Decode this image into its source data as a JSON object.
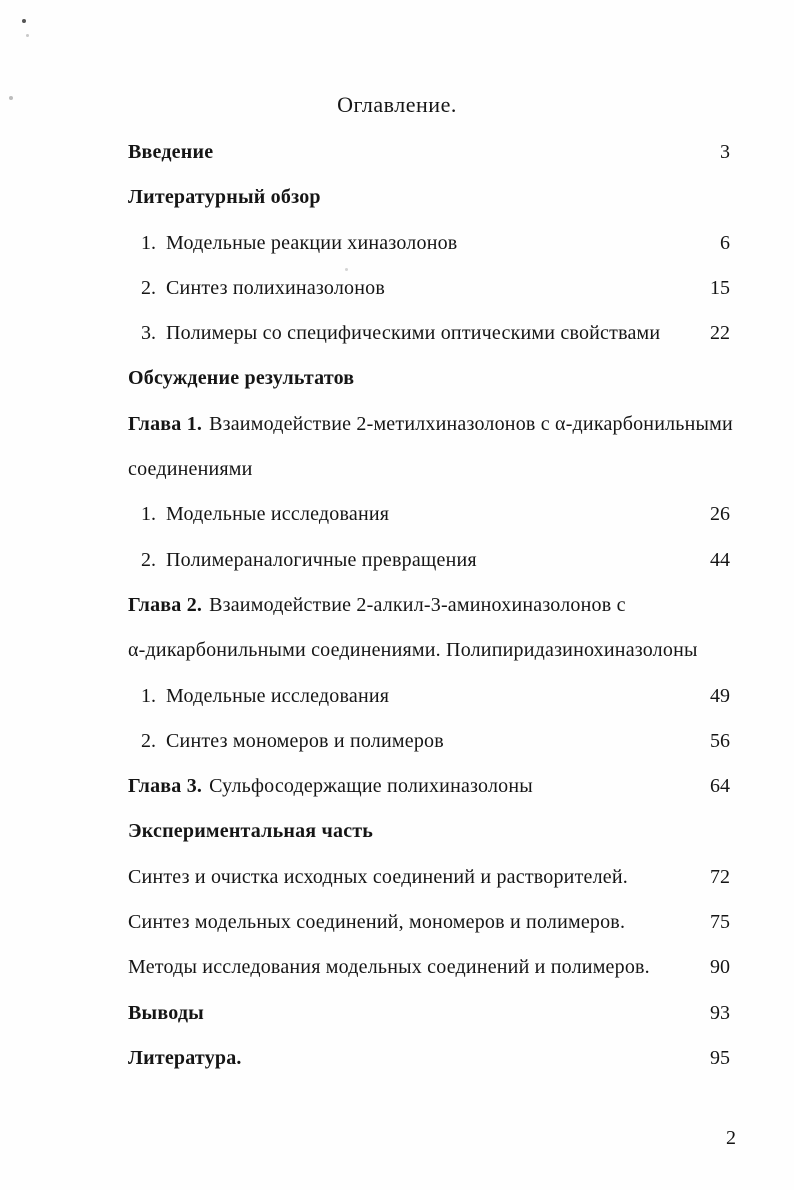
{
  "document": {
    "title": "Оглавление.",
    "footer_page_number": "2"
  },
  "toc": {
    "rows": [
      {
        "num": "",
        "bold": "Введение",
        "text": "",
        "page": "3"
      },
      {
        "num": "",
        "bold": "Литературный обзор",
        "text": "",
        "page": ""
      },
      {
        "num": "1.",
        "bold": "",
        "text": "Модельные реакции хиназолонов",
        "page": "6"
      },
      {
        "num": "2.",
        "bold": "",
        "text": "Синтез полихиназолонов",
        "page": "15"
      },
      {
        "num": "3.",
        "bold": "",
        "text": "Полимеры со специфическими оптическими свойствами",
        "page": "22"
      },
      {
        "num": "",
        "bold": "Обсуждение результатов",
        "text": "",
        "page": ""
      },
      {
        "num": "",
        "bold": "Глава 1.",
        "text": "Взаимодействие 2-метилхиназолонов с α-дикарбонильными",
        "page": ""
      },
      {
        "num": "",
        "bold": "",
        "text": "соединениями",
        "page": ""
      },
      {
        "num": "1.",
        "bold": "",
        "text": "Модельные исследования",
        "page": "26"
      },
      {
        "num": "2.",
        "bold": "",
        "text": "Полимераналогичные превращения",
        "page": "44"
      },
      {
        "num": "",
        "bold": "Глава 2.",
        "text": "Взаимодействие 2-алкил-3-аминохиназолонов с",
        "page": ""
      },
      {
        "num": "",
        "bold": "",
        "text": "α-дикарбонильными соединениями. Полипиридазинохиназолоны",
        "page": ""
      },
      {
        "num": "1.",
        "bold": "",
        "text": "Модельные исследования",
        "page": "49"
      },
      {
        "num": "2.",
        "bold": "",
        "text": "Синтез мономеров и полимеров",
        "page": "56"
      },
      {
        "num": "",
        "bold": "Глава 3.",
        "text": "Сульфосодержащие полихиназолоны",
        "page": "64"
      },
      {
        "num": "",
        "bold": "Экспериментальная часть",
        "text": "",
        "page": ""
      },
      {
        "num": "",
        "bold": "",
        "text": "Синтез и очистка исходных соединений и растворителей.",
        "page": "72"
      },
      {
        "num": "",
        "bold": "",
        "text": "Синтез модельных соединений, мономеров и полимеров.",
        "page": "75"
      },
      {
        "num": "",
        "bold": "",
        "text": "Методы исследования модельных соединений и полимеров.",
        "page": "90"
      },
      {
        "num": "",
        "bold": "Выводы",
        "text": "",
        "page": "93"
      },
      {
        "num": "",
        "bold": "Литература.",
        "text": "",
        "page": "95"
      }
    ]
  }
}
